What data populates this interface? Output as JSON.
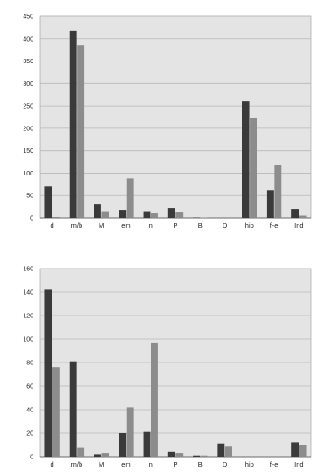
{
  "chart_data": [
    {
      "type": "bar",
      "categories": [
        "d",
        "m/b",
        "M",
        "em",
        "n",
        "P",
        "B",
        "D",
        "hip",
        "f-e",
        "Ind"
      ],
      "series": [
        {
          "values": [
            70,
            418,
            30,
            18,
            15,
            22,
            1,
            0,
            260,
            62,
            20
          ]
        },
        {
          "values": [
            2,
            385,
            15,
            88,
            10,
            12,
            1,
            0,
            222,
            118,
            5
          ]
        }
      ],
      "ylim": [
        0,
        450
      ],
      "yticks": [
        0,
        50,
        100,
        150,
        200,
        250,
        300,
        350,
        400,
        450
      ],
      "grid": true,
      "colors": [
        "#3a3a3a",
        "#8c8c8c"
      ],
      "plot_background": "#e4e4e4"
    },
    {
      "type": "bar",
      "categories": [
        "d",
        "m/b",
        "M",
        "em",
        "n",
        "P",
        "B",
        "D",
        "hip",
        "f-e",
        "Ind"
      ],
      "series": [
        {
          "values": [
            142,
            81,
            2,
            20,
            21,
            4,
            1,
            11,
            0,
            0,
            12
          ]
        },
        {
          "values": [
            76,
            8,
            3,
            42,
            97,
            3,
            1,
            9,
            0,
            0,
            10
          ]
        }
      ],
      "ylim": [
        0,
        160
      ],
      "yticks": [
        0,
        20,
        40,
        60,
        80,
        100,
        120,
        140,
        160
      ],
      "grid": true,
      "colors": [
        "#3a3a3a",
        "#8c8c8c"
      ],
      "plot_background": "#e4e4e4"
    }
  ]
}
